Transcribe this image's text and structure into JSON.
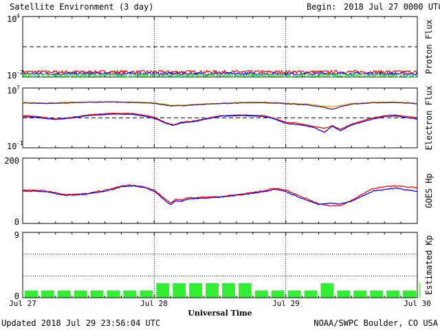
{
  "header": {
    "title": "Satellite Environment (3 day)",
    "begin_label": "Begin:",
    "begin_value": "2018 Jul 27 0000 UTC"
  },
  "footer": {
    "updated": "Updated 2018 Jul 29 23:56:04 UTC",
    "credit": "NOAA/SWPC Boulder, CO USA"
  },
  "xaxis": {
    "label": "Universal Time",
    "range_hours": [
      0,
      72
    ],
    "ticks": [
      {
        "hour": 0,
        "label": "Jul 27"
      },
      {
        "hour": 24,
        "label": "Jul 28"
      },
      {
        "hour": 48,
        "label": "Jul 29"
      },
      {
        "hour": 72,
        "label": "Jul 30"
      }
    ],
    "dotted_day_lines": [
      24,
      48
    ]
  },
  "colors": {
    "red": "#ff0000",
    "blue": "#0000ff",
    "green": "#22ee22",
    "orange": "#e8a020",
    "purple": "#3a1a7a",
    "kp_bar": "#33ee33"
  },
  "chart_data": [
    {
      "type": "line",
      "panel": "proton",
      "ylabel": "Proton Flux",
      "yscale": "log",
      "ylim": [
        0.01,
        10000
      ],
      "tick_labels": [
        {
          "base": "10",
          "exp": "4",
          "value": 10000
        },
        {
          "base": "10",
          "exp": "-2",
          "value": 0.01
        }
      ],
      "threshold": {
        "value": 10,
        "style": "dashed"
      },
      "series": [
        {
          "color": "red",
          "level": 0.032,
          "noise": 0.16
        },
        {
          "color": "blue",
          "level": 0.021,
          "noise": 0.14
        },
        {
          "color": "green",
          "level": 0.014,
          "noise": 0.2
        }
      ]
    },
    {
      "type": "line",
      "panel": "electron",
      "ylabel": "Electron Flux",
      "yscale": "log",
      "ylim": [
        0.1,
        10000000
      ],
      "tick_labels": [
        {
          "base": "10",
          "exp": "7",
          "value": 10000000
        },
        {
          "base": "10",
          "exp": "-1",
          "value": 0.1
        }
      ],
      "threshold": {
        "value": 1000,
        "style": "dashed"
      },
      "series": [
        {
          "color": "orange",
          "x": [
            0,
            4,
            8,
            12,
            16,
            20,
            24,
            27,
            30,
            32,
            36,
            40,
            44,
            48,
            52,
            55,
            56.5,
            58,
            60,
            64,
            68,
            72
          ],
          "y": [
            120000,
            100000,
            115000,
            140000,
            150000,
            135000,
            105000,
            50000,
            55000,
            70000,
            90000,
            120000,
            125000,
            95000,
            70000,
            35000,
            32000,
            45000,
            85000,
            125000,
            130000,
            90000
          ]
        },
        {
          "color": "purple",
          "x": [
            0,
            4,
            8,
            12,
            16,
            20,
            24,
            27,
            30,
            32,
            36,
            40,
            44,
            48,
            52,
            55,
            56.5,
            58,
            60,
            64,
            68,
            72
          ],
          "y": [
            100000,
            85000,
            100000,
            125000,
            135000,
            120000,
            90000,
            40000,
            45000,
            60000,
            80000,
            105000,
            110000,
            80000,
            55000,
            25000,
            14000,
            30000,
            70000,
            110000,
            115000,
            80000
          ]
        },
        {
          "color": "red",
          "x": [
            0,
            3,
            6,
            9,
            12,
            16,
            20,
            22,
            24,
            26,
            27.5,
            29,
            31,
            33,
            36,
            40,
            44,
            46,
            48,
            50,
            53,
            55,
            56.5,
            58,
            60,
            63,
            66,
            68,
            72
          ],
          "y": [
            2000,
            1500,
            700,
            1200,
            2500,
            4000,
            4000,
            2500,
            1200,
            250,
            120,
            280,
            350,
            700,
            2000,
            2500,
            2000,
            900,
            250,
            200,
            80,
            40,
            90,
            30,
            150,
            700,
            2000,
            2500,
            1000
          ]
        },
        {
          "color": "blue",
          "x": [
            0,
            3,
            6,
            9,
            12,
            16,
            20,
            22,
            24,
            26,
            27.5,
            29,
            31,
            33,
            36,
            40,
            44,
            46,
            48,
            50,
            53,
            55,
            56.5,
            58,
            60,
            63,
            66,
            68,
            72
          ],
          "y": [
            1500,
            1100,
            600,
            1000,
            2000,
            3200,
            3000,
            1800,
            900,
            200,
            100,
            220,
            300,
            600,
            1700,
            2100,
            1600,
            700,
            180,
            140,
            60,
            12,
            80,
            20,
            110,
            500,
            1500,
            1800,
            700
          ]
        }
      ]
    },
    {
      "type": "line",
      "panel": "hp",
      "ylabel": "GOES Hp",
      "ylim": [
        0,
        200
      ],
      "tick_labels": [
        {
          "label": "200",
          "value": 200
        },
        {
          "label": "0",
          "value": 0
        }
      ],
      "series": [
        {
          "color": "red",
          "x": [
            0,
            4,
            8,
            12,
            16,
            18,
            20,
            22,
            24,
            26,
            27,
            28,
            29,
            30,
            32,
            36,
            40,
            44,
            46,
            48,
            50,
            52,
            54,
            56,
            58,
            60,
            62,
            64,
            68,
            72
          ],
          "y": [
            103,
            100,
            88,
            92,
            105,
            115,
            118,
            112,
            102,
            75,
            62,
            75,
            72,
            78,
            80,
            82,
            90,
            100,
            108,
            102,
            88,
            75,
            60,
            54,
            55,
            70,
            90,
            108,
            115,
            110
          ]
        },
        {
          "color": "blue",
          "x": [
            0,
            4,
            8,
            12,
            16,
            18,
            20,
            22,
            24,
            26,
            27,
            28,
            29,
            30,
            32,
            36,
            40,
            44,
            46,
            48,
            50,
            52,
            54,
            56,
            58,
            60,
            62,
            64,
            68,
            72
          ],
          "y": [
            100,
            97,
            86,
            90,
            103,
            112,
            116,
            110,
            99,
            70,
            58,
            70,
            67,
            74,
            77,
            80,
            88,
            98,
            105,
            98,
            83,
            70,
            58,
            62,
            60,
            68,
            84,
            100,
            108,
            98
          ]
        }
      ]
    },
    {
      "type": "bar",
      "panel": "kp",
      "ylabel": "Estimated Kp",
      "ylim": [
        0,
        9
      ],
      "tick_labels": [
        {
          "label": "9",
          "value": 9
        },
        {
          "label": "0",
          "value": 0
        }
      ],
      "dotted_levels": [
        3,
        6,
        9
      ],
      "bar_width_hours": 3,
      "values": [
        1,
        1,
        1,
        1,
        1,
        1,
        1,
        1,
        2,
        2,
        2,
        2,
        2,
        2,
        1,
        1,
        1,
        1,
        2,
        1,
        1,
        1,
        1,
        1,
        2
      ]
    }
  ]
}
